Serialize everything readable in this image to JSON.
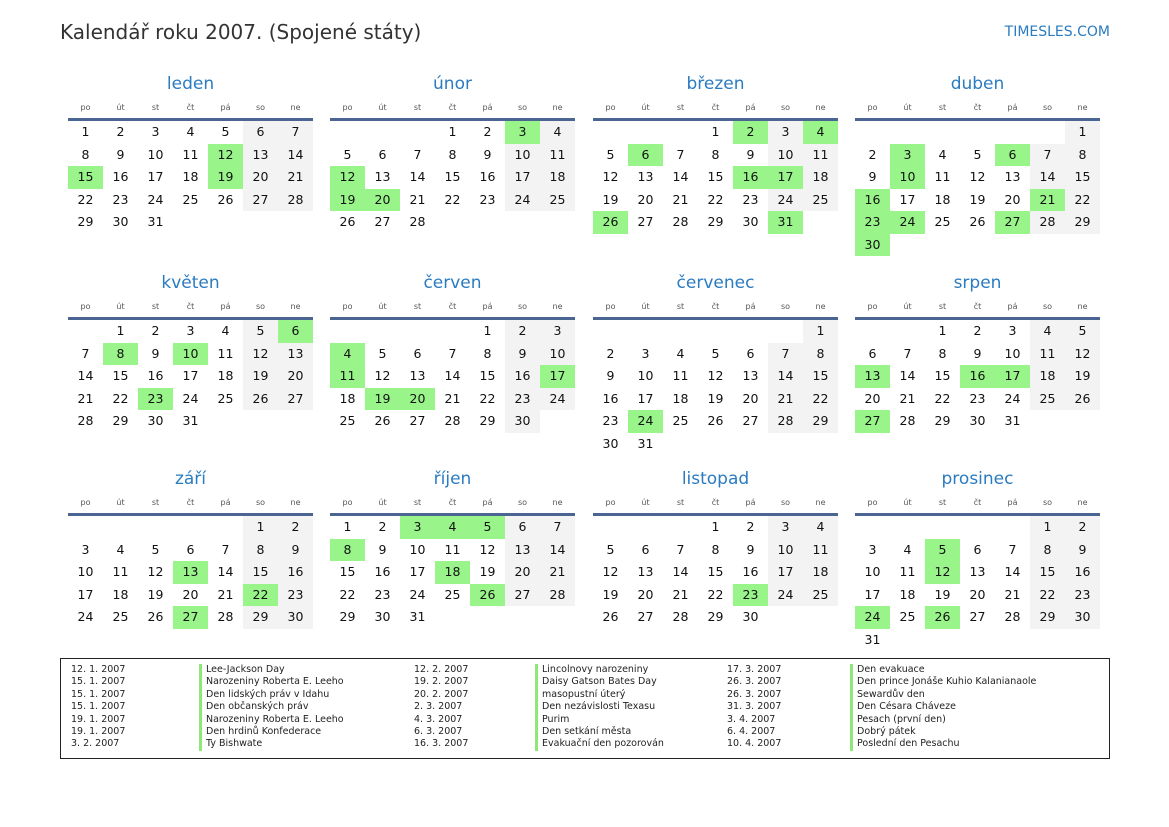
{
  "header": {
    "title": "Kalendář roku 2007. (Spojené státy)",
    "brand": "TIMESLES.COM"
  },
  "year": 2007,
  "weekdays": [
    "po",
    "út",
    "st",
    "čt",
    "pá",
    "so",
    "ne"
  ],
  "colors": {
    "holiday": "#99f58a",
    "weekend": "#f3f3f3",
    "accent": "#2a7bc0",
    "rule": "#4a6591"
  },
  "months": [
    {
      "name": "leden",
      "holidays": [
        12,
        15,
        19
      ]
    },
    {
      "name": "únor",
      "holidays": [
        3,
        12,
        19,
        20
      ]
    },
    {
      "name": "březen",
      "holidays": [
        2,
        4,
        6,
        16,
        17,
        26,
        31
      ]
    },
    {
      "name": "duben",
      "holidays": [
        3,
        6,
        10,
        16,
        21,
        23,
        24,
        27,
        30
      ]
    },
    {
      "name": "květen",
      "holidays": [
        6,
        8,
        10,
        23
      ]
    },
    {
      "name": "červen",
      "holidays": [
        4,
        11,
        17,
        19,
        20
      ]
    },
    {
      "name": "červenec",
      "holidays": [
        24
      ]
    },
    {
      "name": "srpen",
      "holidays": [
        13,
        16,
        17,
        27
      ]
    },
    {
      "name": "září",
      "holidays": [
        13,
        22,
        27
      ]
    },
    {
      "name": "říjen",
      "holidays": [
        3,
        4,
        5,
        8,
        18,
        26
      ]
    },
    {
      "name": "listopad",
      "holidays": [
        23
      ]
    },
    {
      "name": "prosinec",
      "holidays": [
        5,
        12,
        24,
        26
      ]
    }
  ],
  "holiday_list": [
    {
      "date": "12. 1. 2007",
      "name": "Lee-Jackson Day"
    },
    {
      "date": "15. 1. 2007",
      "name": "Narozeniny Roberta E. Leeho"
    },
    {
      "date": "15. 1. 2007",
      "name": "Den lidských práv v Idahu"
    },
    {
      "date": "15. 1. 2007",
      "name": "Den občanských práv"
    },
    {
      "date": "19. 1. 2007",
      "name": "Narozeniny Roberta E. Leeho"
    },
    {
      "date": "19. 1. 2007",
      "name": "Den hrdinů Konfederace"
    },
    {
      "date": "3. 2. 2007",
      "name": "Ty Bishwate"
    },
    {
      "date": "12. 2. 2007",
      "name": "Lincolnovy narozeniny"
    },
    {
      "date": "19. 2. 2007",
      "name": "Daisy Gatson Bates Day"
    },
    {
      "date": "20. 2. 2007",
      "name": "masopustní úterý"
    },
    {
      "date": "2. 3. 2007",
      "name": "Den nezávislosti Texasu"
    },
    {
      "date": "4. 3. 2007",
      "name": "Purim"
    },
    {
      "date": "6. 3. 2007",
      "name": "Den setkání města"
    },
    {
      "date": "16. 3. 2007",
      "name": "Evakuační den pozorován"
    },
    {
      "date": "17. 3. 2007",
      "name": "Den evakuace"
    },
    {
      "date": "26. 3. 2007",
      "name": "Den prince Jonáše Kuhio Kalanianaole"
    },
    {
      "date": "26. 3. 2007",
      "name": "Sewardův den"
    },
    {
      "date": "31. 3. 2007",
      "name": "Den Césara Cháveze"
    },
    {
      "date": "3. 4. 2007",
      "name": "Pesach (první den)"
    },
    {
      "date": "6. 4. 2007",
      "name": "Dobrý pátek"
    },
    {
      "date": "10. 4. 2007",
      "name": "Poslední den Pesachu"
    }
  ]
}
